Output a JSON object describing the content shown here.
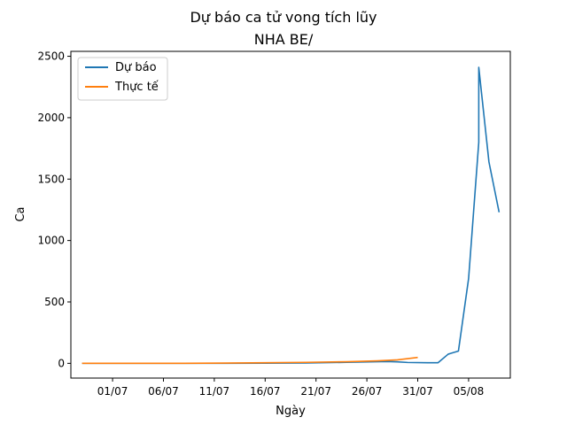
{
  "chart_data": {
    "type": "line",
    "title": "Dự báo ca tử vong tích lũy",
    "subtitle": "NHA BE/",
    "xlabel": "Ngày",
    "ylabel": "Ca",
    "x_start": "2021-06-28",
    "x_end": "2021-08-08",
    "ylim": [
      -120,
      2540
    ],
    "xticks": [
      "01/07",
      "06/07",
      "11/07",
      "16/07",
      "21/07",
      "26/07",
      "31/07",
      "05/08"
    ],
    "yticks": [
      0,
      500,
      1000,
      1500,
      2000,
      2500
    ],
    "legend_position": "top-left",
    "series": [
      {
        "name": "Dự báo",
        "color": "#1f77b4",
        "points": [
          {
            "x": "2021-06-28",
            "y": 0
          },
          {
            "x": "2021-07-08",
            "y": 0
          },
          {
            "x": "2021-07-16",
            "y": 1
          },
          {
            "x": "2021-07-20",
            "y": 3
          },
          {
            "x": "2021-07-24",
            "y": 8
          },
          {
            "x": "2021-07-28",
            "y": 15
          },
          {
            "x": "2021-07-29",
            "y": 12
          },
          {
            "x": "2021-07-30",
            "y": 7
          },
          {
            "x": "2021-08-01",
            "y": 5
          },
          {
            "x": "2021-08-02",
            "y": 5
          },
          {
            "x": "2021-08-03",
            "y": 75
          },
          {
            "x": "2021-08-04",
            "y": 100
          },
          {
            "x": "2021-08-05",
            "y": 690
          },
          {
            "x": "2021-08-05",
            "y": 690
          },
          {
            "x": "2021-08-06",
            "y": 1800
          },
          {
            "x": "2021-08-06",
            "y": 2410
          },
          {
            "x": "2021-08-07",
            "y": 1640
          },
          {
            "x": "2021-08-08",
            "y": 1230
          }
        ]
      },
      {
        "name": "Thực tế",
        "color": "#ff7f0e",
        "points": [
          {
            "x": "2021-06-28",
            "y": 0
          },
          {
            "x": "2021-07-08",
            "y": 0
          },
          {
            "x": "2021-07-12",
            "y": 2
          },
          {
            "x": "2021-07-16",
            "y": 5
          },
          {
            "x": "2021-07-20",
            "y": 8
          },
          {
            "x": "2021-07-24",
            "y": 13
          },
          {
            "x": "2021-07-27",
            "y": 20
          },
          {
            "x": "2021-07-29",
            "y": 28
          },
          {
            "x": "2021-07-30",
            "y": 38
          },
          {
            "x": "2021-07-31",
            "y": 48
          }
        ]
      }
    ]
  }
}
